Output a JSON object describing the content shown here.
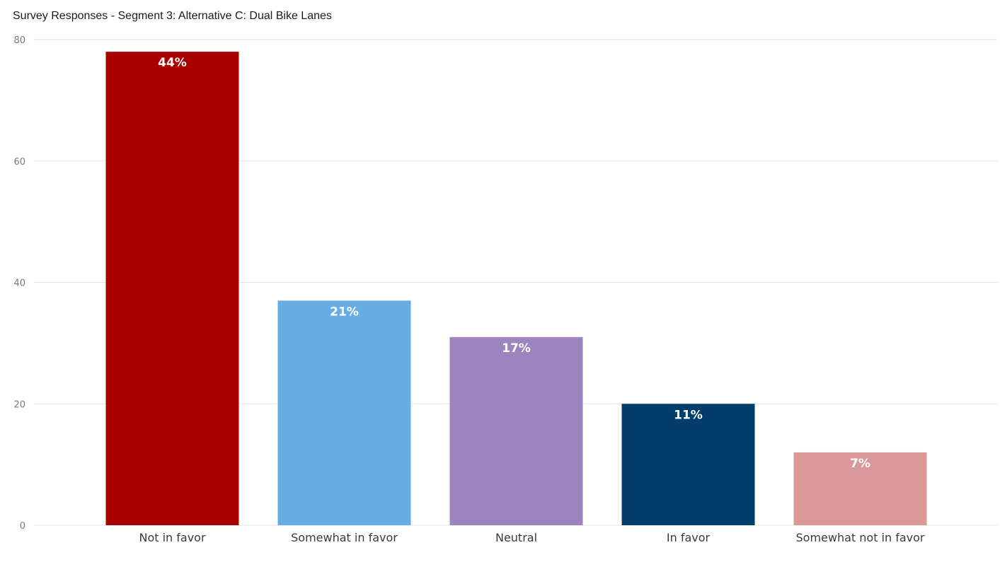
{
  "chart_data": {
    "type": "bar",
    "title": "Survey Responses - Segment 3: Alternative C: Dual Bike Lanes",
    "xlabel": "",
    "ylabel": "",
    "categories": [
      "Not in favor",
      "Somewhat in favor",
      "Neutral",
      "In favor",
      "Somewhat not in favor"
    ],
    "values": [
      78,
      37,
      31,
      20,
      12
    ],
    "data_labels": [
      "44%",
      "21%",
      "17%",
      "11%",
      "7%"
    ],
    "colors": [
      "#a80000",
      "#66ade6",
      "#9d84be",
      "#003d6b",
      "#da9899"
    ],
    "ylim": [
      0,
      80
    ],
    "yticks": [
      "0",
      "20",
      "40",
      "60",
      "80"
    ],
    "grid": true,
    "legend": "none"
  }
}
